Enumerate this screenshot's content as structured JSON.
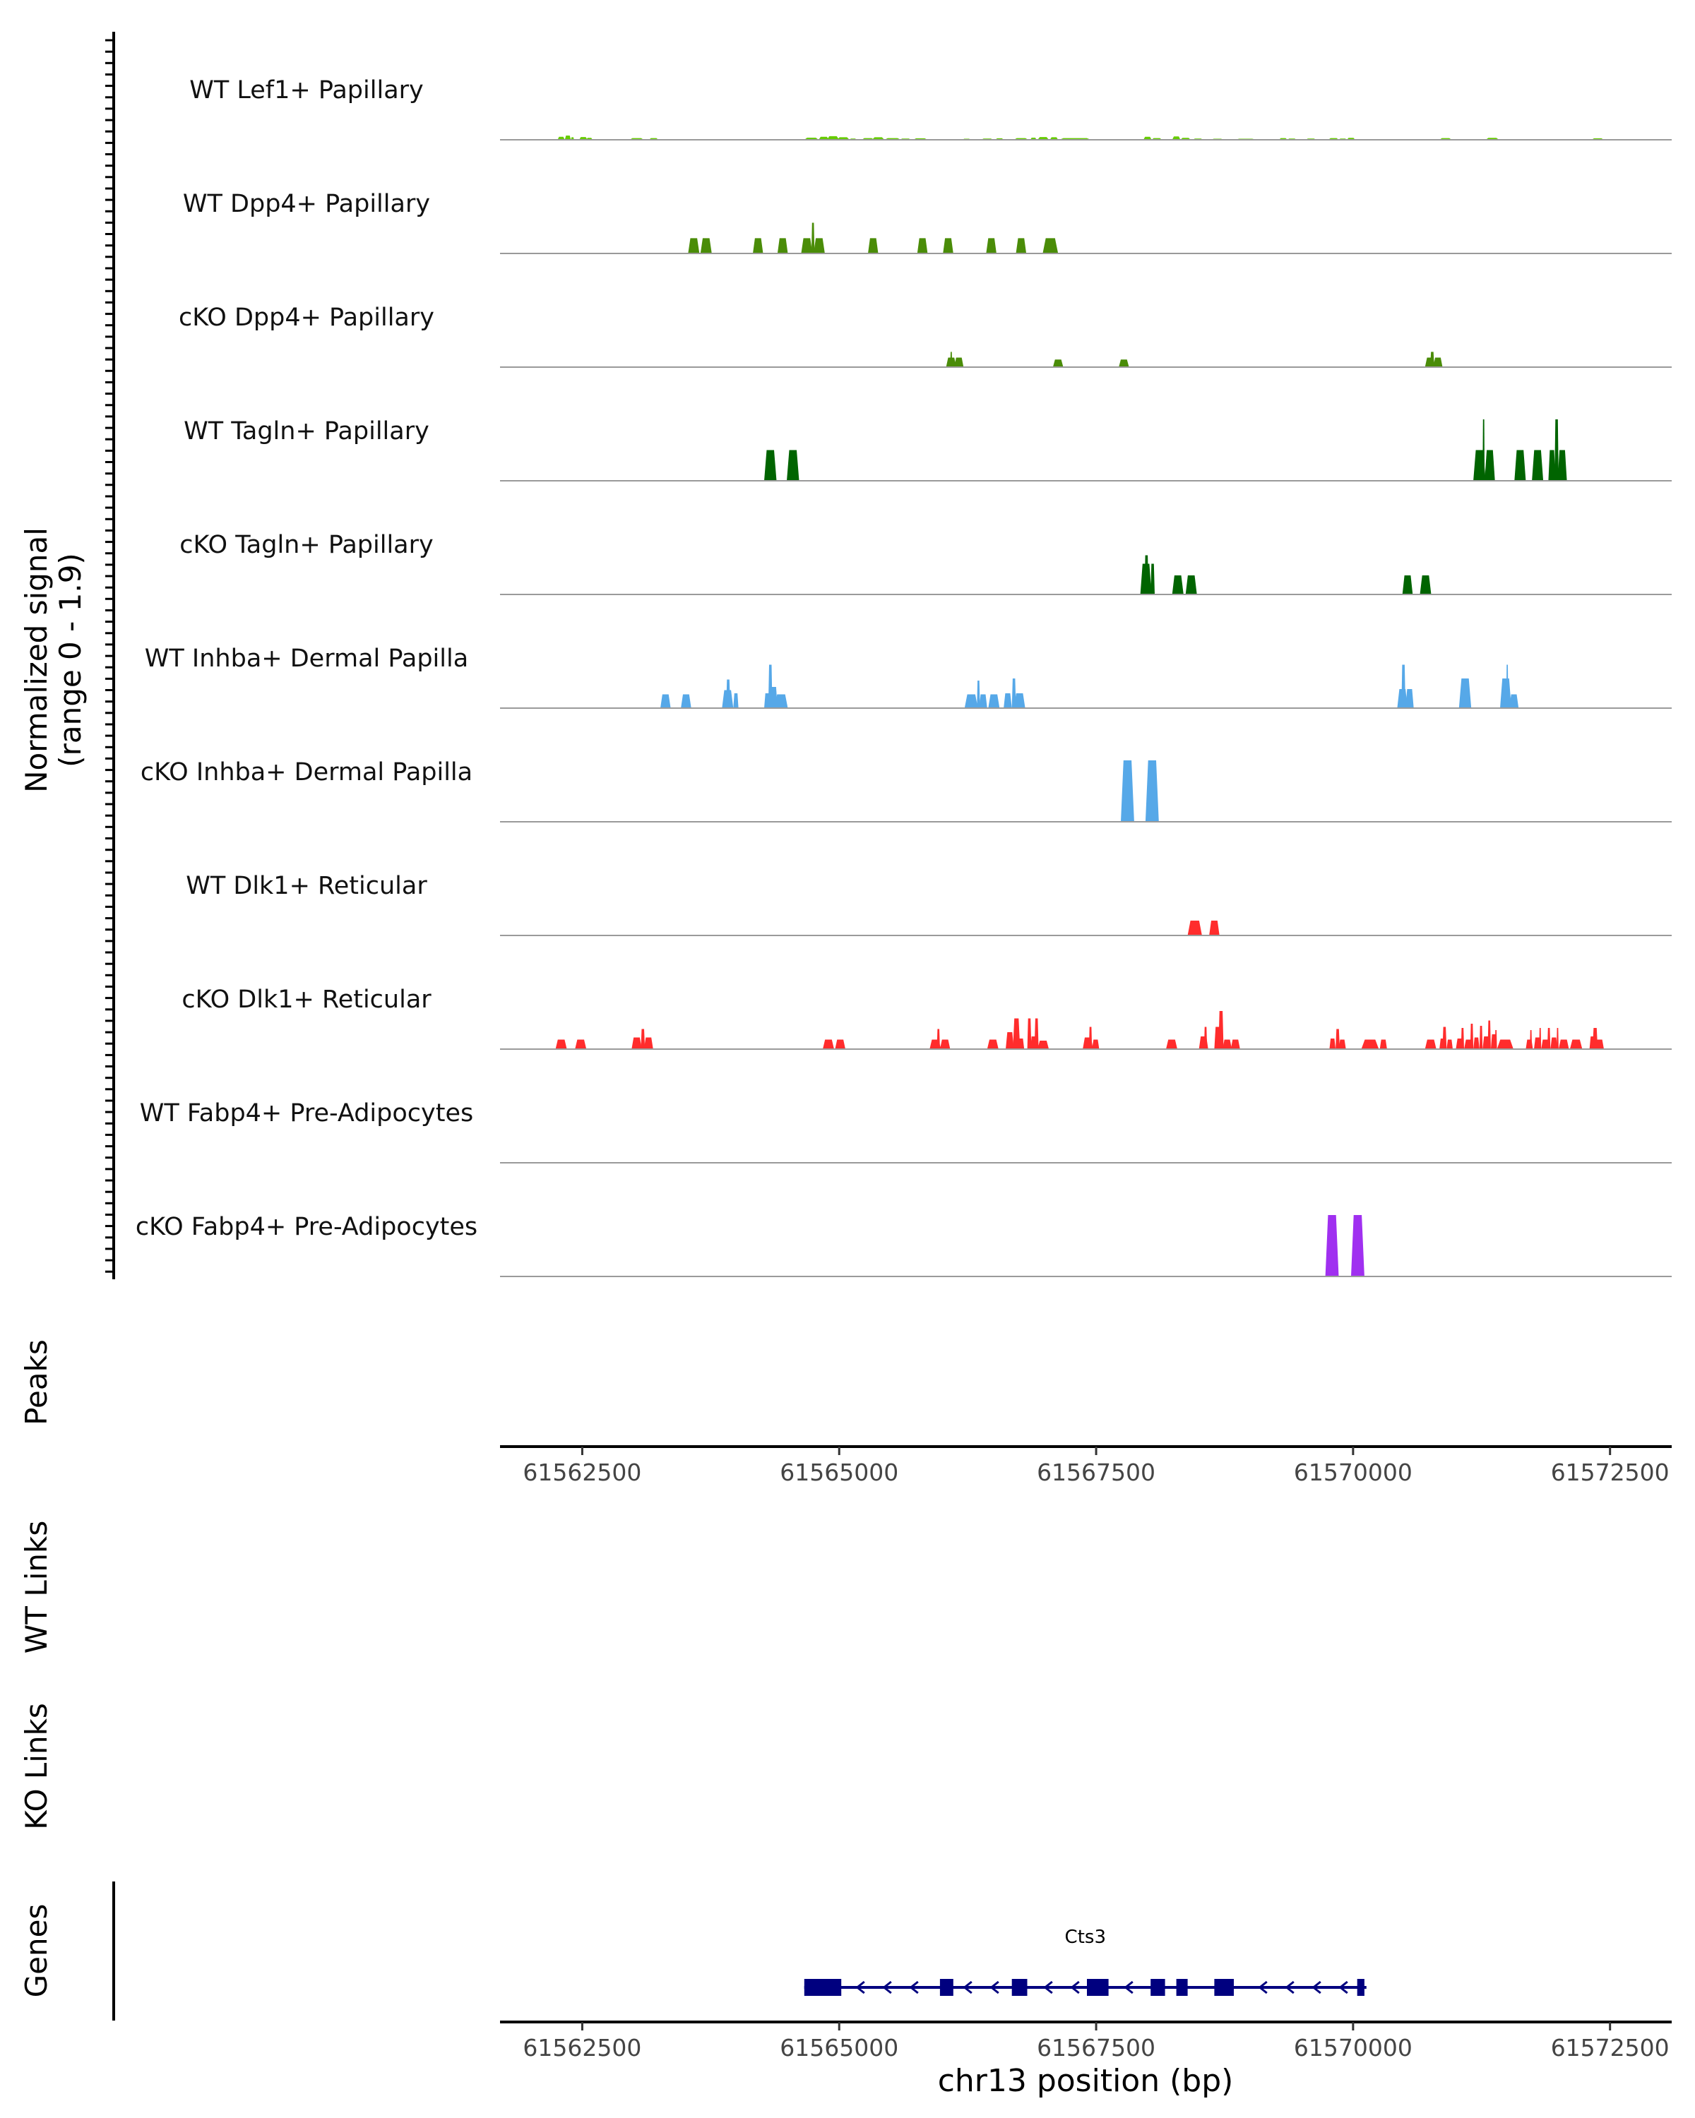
{
  "chart_data": {
    "type": "area",
    "genome_range": [
      61561700,
      61573100
    ],
    "signal_axis": {
      "label_line1": "Normalized signal",
      "label_line2": "(range 0 - 1.9)",
      "range": [
        0,
        1.9
      ]
    },
    "tracks": [
      {
        "name": "WT Lef1+ Papillary",
        "color": "#66CC00",
        "peaks": [
          [
            61562260,
            61562330,
            0.14
          ],
          [
            61562330,
            61562390,
            0.2
          ],
          [
            61562390,
            61562420,
            0.12
          ],
          [
            61562470,
            61562550,
            0.13
          ],
          [
            61562540,
            61562600,
            0.09
          ],
          [
            61562960,
            61563100,
            0.08
          ],
          [
            61563150,
            61563240,
            0.08
          ],
          [
            61564660,
            61564800,
            0.1
          ],
          [
            61564800,
            61564900,
            0.14
          ],
          [
            61564880,
            61565000,
            0.17
          ],
          [
            61564980,
            61565100,
            0.12
          ],
          [
            61565100,
            61565170,
            0.06
          ],
          [
            61565220,
            61565340,
            0.08
          ],
          [
            61565320,
            61565440,
            0.12
          ],
          [
            61565440,
            61565600,
            0.08
          ],
          [
            61565590,
            61565700,
            0.06
          ],
          [
            61565720,
            61565860,
            0.07
          ],
          [
            61566200,
            61566280,
            0.05
          ],
          [
            61566380,
            61566500,
            0.06
          ],
          [
            61566520,
            61566600,
            0.07
          ],
          [
            61566700,
            61566840,
            0.08
          ],
          [
            61566860,
            61566920,
            0.1
          ],
          [
            61566930,
            61567040,
            0.13
          ],
          [
            61567050,
            61567130,
            0.12
          ],
          [
            61567140,
            61567450,
            0.08
          ],
          [
            61567960,
            61568040,
            0.14
          ],
          [
            61568040,
            61568140,
            0.08
          ],
          [
            61568240,
            61568320,
            0.16
          ],
          [
            61568320,
            61568420,
            0.09
          ],
          [
            61568440,
            61568540,
            0.06
          ],
          [
            61568620,
            61568740,
            0.05
          ],
          [
            61568850,
            61569060,
            0.05
          ],
          [
            61569280,
            61569360,
            0.08
          ],
          [
            61569360,
            61569450,
            0.06
          ],
          [
            61569540,
            61569640,
            0.06
          ],
          [
            61569760,
            61569860,
            0.08
          ],
          [
            61569860,
            61569940,
            0.06
          ],
          [
            61569940,
            61570020,
            0.09
          ],
          [
            61570840,
            61570960,
            0.08
          ],
          [
            61571290,
            61571420,
            0.09
          ],
          [
            61572320,
            61572440,
            0.07
          ]
        ]
      },
      {
        "name": "WT Dpp4+ Papillary",
        "color": "#4A8C08",
        "peaks": [
          [
            61563530,
            61563640,
            0.72
          ],
          [
            61563650,
            61563760,
            0.72
          ],
          [
            61564160,
            61564260,
            0.72
          ],
          [
            61564400,
            61564500,
            0.72
          ],
          [
            61564630,
            61564740,
            0.72
          ],
          [
            61564730,
            61564760,
            1.45
          ],
          [
            61564750,
            61564860,
            0.72
          ],
          [
            61565280,
            61565380,
            0.72
          ],
          [
            61565760,
            61565860,
            0.72
          ],
          [
            61566010,
            61566110,
            0.72
          ],
          [
            61566430,
            61566530,
            0.72
          ],
          [
            61566720,
            61566820,
            0.72
          ],
          [
            61566980,
            61567130,
            0.72
          ]
        ]
      },
      {
        "name": "cKO Dpp4+ Papillary",
        "color": "#4A8C08",
        "peaks": [
          [
            61566040,
            61566140,
            0.45
          ],
          [
            61566080,
            61566100,
            0.72
          ],
          [
            61566120,
            61566210,
            0.45
          ],
          [
            61567080,
            61567180,
            0.36
          ],
          [
            61567720,
            61567820,
            0.36
          ],
          [
            61570700,
            61570800,
            0.45
          ],
          [
            61570750,
            61570790,
            0.72
          ],
          [
            61570780,
            61570870,
            0.45
          ]
        ]
      },
      {
        "name": "WT Tagln+ Papillary",
        "color": "#006400",
        "peaks": [
          [
            61564270,
            61564390,
            1.45
          ],
          [
            61564490,
            61564610,
            1.45
          ],
          [
            61571170,
            61571290,
            1.45
          ],
          [
            61571260,
            61571280,
            2.9
          ],
          [
            61571280,
            61571380,
            1.45
          ],
          [
            61571570,
            61571680,
            1.45
          ],
          [
            61571740,
            61571850,
            1.45
          ],
          [
            61571900,
            61571970,
            1.45
          ],
          [
            61571960,
            61572000,
            2.9
          ],
          [
            61571990,
            61572080,
            1.45
          ]
        ]
      },
      {
        "name": "cKO Tagln+ Papillary",
        "color": "#006400",
        "peaks": [
          [
            61567930,
            61568040,
            1.45
          ],
          [
            61567970,
            61568010,
            1.85
          ],
          [
            61568030,
            61568070,
            1.45
          ],
          [
            61568240,
            61568350,
            0.9
          ],
          [
            61568370,
            61568480,
            0.9
          ],
          [
            61570480,
            61570580,
            0.9
          ],
          [
            61570650,
            61570760,
            0.9
          ]
        ]
      },
      {
        "name": "WT Inhba+ Dermal Papilla",
        "color": "#56A8E8",
        "peaks": [
          [
            61563260,
            61563360,
            0.65
          ],
          [
            61563460,
            61563560,
            0.65
          ],
          [
            61563860,
            61563970,
            0.85
          ],
          [
            61563900,
            61563940,
            1.35
          ],
          [
            61563970,
            61564020,
            0.7
          ],
          [
            61564270,
            61564330,
            0.7
          ],
          [
            61564310,
            61564350,
            2.05
          ],
          [
            61564330,
            61564400,
            1.0
          ],
          [
            61564370,
            61564500,
            0.65
          ],
          [
            61566220,
            61566350,
            0.65
          ],
          [
            61566340,
            61566370,
            1.3
          ],
          [
            61566360,
            61566440,
            0.65
          ],
          [
            61566450,
            61566560,
            0.65
          ],
          [
            61566600,
            61566680,
            0.7
          ],
          [
            61566680,
            61566720,
            1.4
          ],
          [
            61566700,
            61566810,
            0.7
          ],
          [
            61570430,
            61570530,
            0.9
          ],
          [
            61570470,
            61570510,
            2.05
          ],
          [
            61570510,
            61570590,
            0.9
          ],
          [
            61571030,
            61571150,
            1.4
          ],
          [
            61571430,
            61571540,
            1.4
          ],
          [
            61571490,
            61571510,
            2.05
          ],
          [
            61571520,
            61571610,
            0.65
          ]
        ]
      },
      {
        "name": "cKO Inhba+ Dermal Papilla",
        "color": "#56A8E8",
        "peaks": [
          [
            61567740,
            61567870,
            2.9
          ],
          [
            61567980,
            61568110,
            2.9
          ]
        ]
      },
      {
        "name": "WT Dlk1+ Reticular",
        "color": "#FF2C2C",
        "peaks": [
          [
            61568390,
            61568530,
            0.7
          ],
          [
            61568600,
            61568700,
            0.7
          ]
        ]
      },
      {
        "name": "cKO Dlk1+ Reticular",
        "color": "#FF2C2C",
        "peaks": [
          [
            61562240,
            61562350,
            0.45
          ],
          [
            61562430,
            61562540,
            0.45
          ],
          [
            61562980,
            61563080,
            0.55
          ],
          [
            61563070,
            61563110,
            0.95
          ],
          [
            61563100,
            61563190,
            0.55
          ],
          [
            61564840,
            61564950,
            0.45
          ],
          [
            61564960,
            61565060,
            0.45
          ],
          [
            61565880,
            61565990,
            0.45
          ],
          [
            61565950,
            61565980,
            0.95
          ],
          [
            61565980,
            61566080,
            0.45
          ],
          [
            61566440,
            61566550,
            0.45
          ],
          [
            61566620,
            61566700,
            0.8
          ],
          [
            61566690,
            61566760,
            1.45
          ],
          [
            61566740,
            61566800,
            0.5
          ],
          [
            61566830,
            61566870,
            1.45
          ],
          [
            61566860,
            61566920,
            0.6
          ],
          [
            61566900,
            61566940,
            1.45
          ],
          [
            61566930,
            61567040,
            0.4
          ],
          [
            61567370,
            61567470,
            0.55
          ],
          [
            61567430,
            61567460,
            1.05
          ],
          [
            61567460,
            61567530,
            0.45
          ],
          [
            61568180,
            61568290,
            0.45
          ],
          [
            61568500,
            61568590,
            0.6
          ],
          [
            61568550,
            61568580,
            1.05
          ],
          [
            61568650,
            61568710,
            1.05
          ],
          [
            61568690,
            61568740,
            1.8
          ],
          [
            61568730,
            61568820,
            0.45
          ],
          [
            61568810,
            61568900,
            0.45
          ],
          [
            61569770,
            61569830,
            0.5
          ],
          [
            61569830,
            61569870,
            0.95
          ],
          [
            61569860,
            61569930,
            0.45
          ],
          [
            61570080,
            61570250,
            0.45
          ],
          [
            61570260,
            61570330,
            0.45
          ],
          [
            61570700,
            61570810,
            0.45
          ],
          [
            61570840,
            61570900,
            0.5
          ],
          [
            61570870,
            61570910,
            1.05
          ],
          [
            61570910,
            61570970,
            0.45
          ],
          [
            61571000,
            61571080,
            0.5
          ],
          [
            61571050,
            61571080,
            1.0
          ],
          [
            61571080,
            61571170,
            0.45
          ],
          [
            61571140,
            61571170,
            1.2
          ],
          [
            61571170,
            61571230,
            0.55
          ],
          [
            61571230,
            61571260,
            1.1
          ],
          [
            61571260,
            61571330,
            0.6
          ],
          [
            61571310,
            61571340,
            1.35
          ],
          [
            61571340,
            61571400,
            0.7
          ],
          [
            61571380,
            61571400,
            0.9
          ],
          [
            61571400,
            61571560,
            0.45
          ],
          [
            61571680,
            61571750,
            0.45
          ],
          [
            61571720,
            61571740,
            0.9
          ],
          [
            61571760,
            61571830,
            0.55
          ],
          [
            61571810,
            61571830,
            1.0
          ],
          [
            61571830,
            61571910,
            0.45
          ],
          [
            61571890,
            61571920,
            1.0
          ],
          [
            61571920,
            61571990,
            0.55
          ],
          [
            61571980,
            61572000,
            1.0
          ],
          [
            61572000,
            61572100,
            0.45
          ],
          [
            61572110,
            61572230,
            0.45
          ],
          [
            61572300,
            61572360,
            0.6
          ],
          [
            61572330,
            61572380,
            1.0
          ],
          [
            61572360,
            61572440,
            0.45
          ]
        ]
      },
      {
        "name": "WT Fabp4+ Pre-Adipocytes",
        "color": "#A020F0",
        "peaks": []
      },
      {
        "name": "cKO Fabp4+ Pre-Adipocytes",
        "color": "#A030F0",
        "peaks": [
          [
            61569730,
            61569860,
            2.9
          ],
          [
            61569980,
            61570110,
            2.9
          ]
        ]
      }
    ],
    "panels": {
      "peaks": "Peaks",
      "wt_links": "WT Links",
      "ko_links": "KO Links",
      "genes": "Genes"
    },
    "x_ticks": [
      61562500,
      61565000,
      61567500,
      61570000,
      61572500
    ],
    "x_tick_labels": [
      "61562500",
      "61565000",
      "61567500",
      "61570000",
      "61572500"
    ],
    "xlabel": "chr13 position (bp)",
    "gene": {
      "name": "Cts3",
      "color": "#00007F",
      "start": 61564660,
      "end": 61570130,
      "strand": "-",
      "exons": [
        [
          61564660,
          61565020
        ],
        [
          61565980,
          61566110
        ],
        [
          61566680,
          61566830
        ],
        [
          61567410,
          61567620
        ],
        [
          61568030,
          61568170
        ],
        [
          61568280,
          61568390
        ],
        [
          61568650,
          61568840
        ],
        [
          61570040,
          61570110
        ]
      ]
    }
  }
}
